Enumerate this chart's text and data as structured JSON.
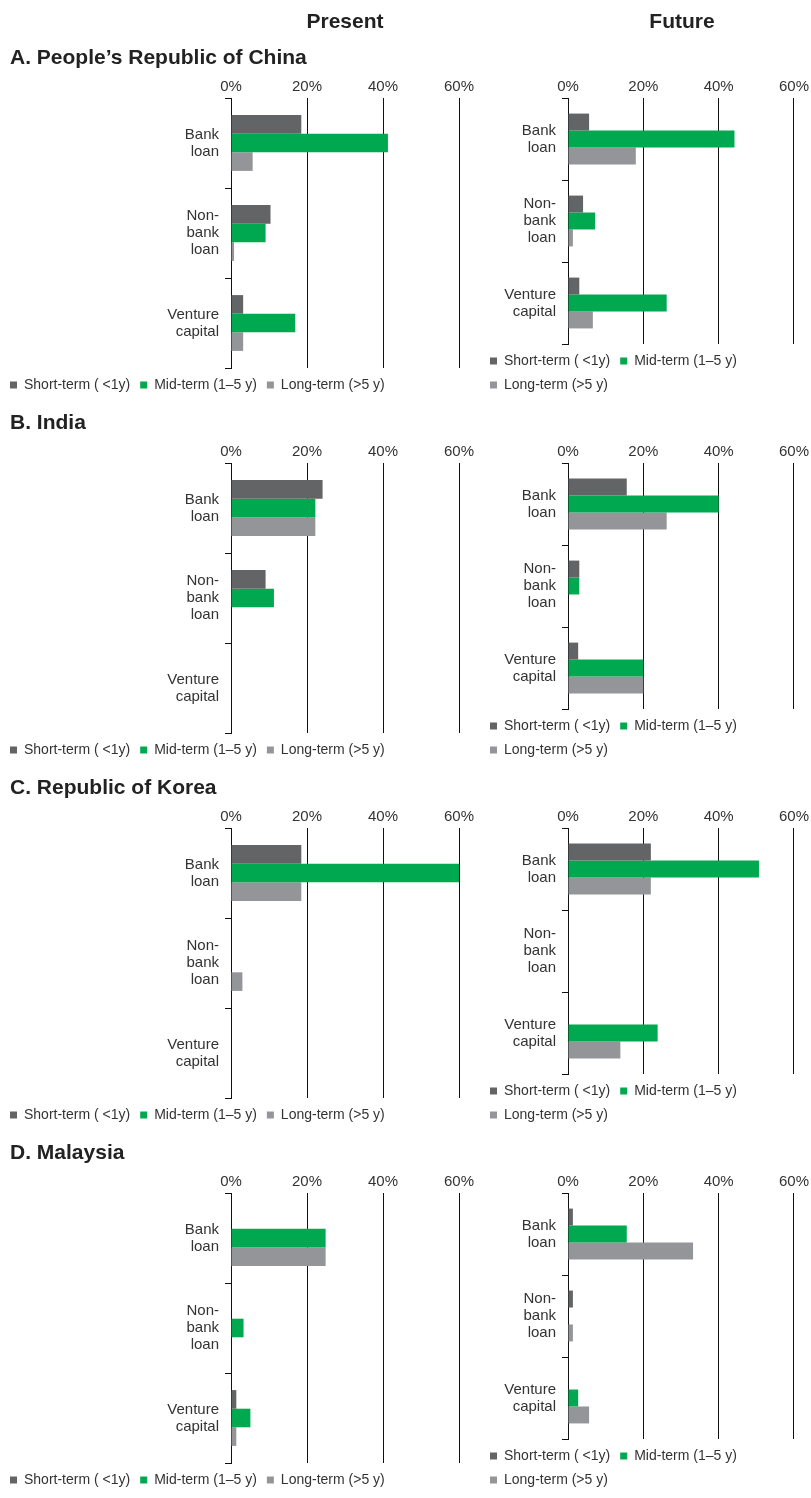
{
  "chart_data": [
    {
      "type": "bar",
      "orientation": "horizontal",
      "subtitle": "Present",
      "title": "A. People’s Republic of China",
      "categories": [
        "Bank loan",
        "Non-bank loan",
        "Venture capital"
      ],
      "xlim": [
        0,
        60
      ],
      "xticks": [
        {
          "value": 0,
          "label": "0%"
        },
        {
          "value": 20,
          "label": "20%"
        },
        {
          "value": 40,
          "label": "40%"
        },
        {
          "value": 60,
          "label": "60%"
        }
      ],
      "grid": "x",
      "legend": "bottom",
      "series": [
        {
          "name": "Short-term ( <1y)",
          "color": "#636466",
          "values": [
            18.5,
            10.4,
            3.2
          ]
        },
        {
          "name": "Mid-term (1–5 y)",
          "color": "#00a84f",
          "values": [
            41.3,
            9.1,
            16.9
          ]
        },
        {
          "name": "Long-term (>5 y)",
          "color": "#939598",
          "values": [
            5.7,
            0.8,
            3.2
          ]
        }
      ]
    },
    {
      "type": "bar",
      "orientation": "horizontal",
      "subtitle": "Future",
      "categories": [
        "Bank loan",
        "Non-bank loan",
        "Venture capital"
      ],
      "xlim": [
        0,
        60
      ],
      "xticks": [
        {
          "value": 0,
          "label": "0%"
        },
        {
          "value": 20,
          "label": "20%"
        },
        {
          "value": 40,
          "label": "40%"
        },
        {
          "value": 60,
          "label": "60%"
        }
      ],
      "grid": "x",
      "legend": "bottom",
      "series": [
        {
          "name": "Short-term ( <1y)",
          "color": "#636466",
          "values": [
            5.6,
            4,
            3
          ]
        },
        {
          "name": "Mid-term (1–5 y)",
          "color": "#00a84f",
          "values": [
            44.2,
            7.2,
            26.2
          ]
        },
        {
          "name": "Long-term (>5 y)",
          "color": "#939598",
          "values": [
            18,
            1.3,
            6.6
          ]
        }
      ]
    },
    {
      "type": "bar",
      "orientation": "horizontal",
      "title": "B. India",
      "categories": [
        "Bank loan",
        "Non-bank loan",
        "Venture capital"
      ],
      "xlim": [
        0,
        60
      ],
      "xticks": [
        {
          "value": 0,
          "label": "0%"
        },
        {
          "value": 20,
          "label": "20%"
        },
        {
          "value": 40,
          "label": "40%"
        },
        {
          "value": 60,
          "label": "60%"
        }
      ],
      "grid": "x",
      "legend": "bottom",
      "series": [
        {
          "name": "Short-term ( <1y)",
          "color": "#636466",
          "values": [
            24.1,
            9.1,
            0
          ]
        },
        {
          "name": "Mid-term (1–5 y)",
          "color": "#00a84f",
          "values": [
            22.2,
            11.3,
            0
          ]
        },
        {
          "name": "Long-term (>5 y)",
          "color": "#939598",
          "values": [
            22.2,
            0,
            0
          ]
        }
      ]
    },
    {
      "type": "bar",
      "orientation": "horizontal",
      "categories": [
        "Bank loan",
        "Non-bank loan",
        "Venture capital"
      ],
      "xlim": [
        0,
        60
      ],
      "xticks": [
        {
          "value": 0,
          "label": "0%"
        },
        {
          "value": 20,
          "label": "20%"
        },
        {
          "value": 40,
          "label": "40%"
        },
        {
          "value": 60,
          "label": "60%"
        }
      ],
      "grid": "x",
      "legend": "bottom",
      "series": [
        {
          "name": "Short-term ( <1y)",
          "color": "#636466",
          "values": [
            15.6,
            3,
            2.7
          ]
        },
        {
          "name": "Mid-term (1–5 y)",
          "color": "#00a84f",
          "values": [
            40,
            3,
            20
          ]
        },
        {
          "name": "Long-term (>5 y)",
          "color": "#939598",
          "values": [
            26.2,
            0,
            20
          ]
        }
      ]
    },
    {
      "type": "bar",
      "orientation": "horizontal",
      "title": "C. Republic of Korea",
      "categories": [
        "Bank loan",
        "Non-bank loan",
        "Venture capital"
      ],
      "xlim": [
        0,
        60
      ],
      "xticks": [
        {
          "value": 0,
          "label": "0%"
        },
        {
          "value": 20,
          "label": "20%"
        },
        {
          "value": 40,
          "label": "40%"
        },
        {
          "value": 60,
          "label": "60%"
        }
      ],
      "grid": "x",
      "legend": "bottom",
      "series": [
        {
          "name": "Short-term ( <1y)",
          "color": "#636466",
          "values": [
            18.5,
            0,
            0
          ]
        },
        {
          "name": "Mid-term (1–5 y)",
          "color": "#00a84f",
          "values": [
            60,
            0,
            0
          ]
        },
        {
          "name": "Long-term (>5 y)",
          "color": "#939598",
          "values": [
            18.5,
            3,
            0
          ]
        }
      ]
    },
    {
      "type": "bar",
      "orientation": "horizontal",
      "categories": [
        "Bank loan",
        "Non-bank loan",
        "Venture capital"
      ],
      "xlim": [
        0,
        60
      ],
      "xticks": [
        {
          "value": 0,
          "label": "0%"
        },
        {
          "value": 20,
          "label": "20%"
        },
        {
          "value": 40,
          "label": "40%"
        },
        {
          "value": 60,
          "label": "60%"
        }
      ],
      "grid": "x",
      "legend": "bottom",
      "series": [
        {
          "name": "Short-term ( <1y)",
          "color": "#636466",
          "values": [
            22,
            0,
            0
          ]
        },
        {
          "name": "Mid-term (1–5 y)",
          "color": "#00a84f",
          "values": [
            50.7,
            0,
            23.8
          ]
        },
        {
          "name": "Long-term (>5 y)",
          "color": "#939598",
          "values": [
            22,
            0,
            13.9
          ]
        }
      ]
    },
    {
      "type": "bar",
      "orientation": "horizontal",
      "title": "D. Malaysia",
      "categories": [
        "Bank loan",
        "Non-bank loan",
        "Venture capital"
      ],
      "xlim": [
        0,
        60
      ],
      "xticks": [
        {
          "value": 0,
          "label": "0%"
        },
        {
          "value": 20,
          "label": "20%"
        },
        {
          "value": 40,
          "label": "40%"
        },
        {
          "value": 60,
          "label": "60%"
        }
      ],
      "grid": "x",
      "legend": "bottom",
      "series": [
        {
          "name": "Short-term ( <1y)",
          "color": "#636466",
          "values": [
            0,
            0,
            1.4
          ]
        },
        {
          "name": "Mid-term (1–5 y)",
          "color": "#00a84f",
          "values": [
            24.9,
            3.3,
            5.1
          ]
        },
        {
          "name": "Long-term (>5 y)",
          "color": "#939598",
          "values": [
            24.9,
            0,
            1.4
          ]
        }
      ]
    },
    {
      "type": "bar",
      "orientation": "horizontal",
      "categories": [
        "Bank loan",
        "Non-bank loan",
        "Venture capital"
      ],
      "xlim": [
        0,
        60
      ],
      "xticks": [
        {
          "value": 0,
          "label": "0%"
        },
        {
          "value": 20,
          "label": "20%"
        },
        {
          "value": 40,
          "label": "40%"
        },
        {
          "value": 60,
          "label": "60%"
        }
      ],
      "grid": "x",
      "legend": "bottom",
      "series": [
        {
          "name": "Short-term ( <1y)",
          "color": "#636466",
          "values": [
            1.3,
            1.3,
            0
          ]
        },
        {
          "name": "Mid-term (1–5 y)",
          "color": "#00a84f",
          "values": [
            15.6,
            0,
            2.7
          ]
        },
        {
          "name": "Long-term (>5 y)",
          "color": "#939598",
          "values": [
            33.2,
            1.3,
            5.6
          ]
        }
      ]
    }
  ]
}
